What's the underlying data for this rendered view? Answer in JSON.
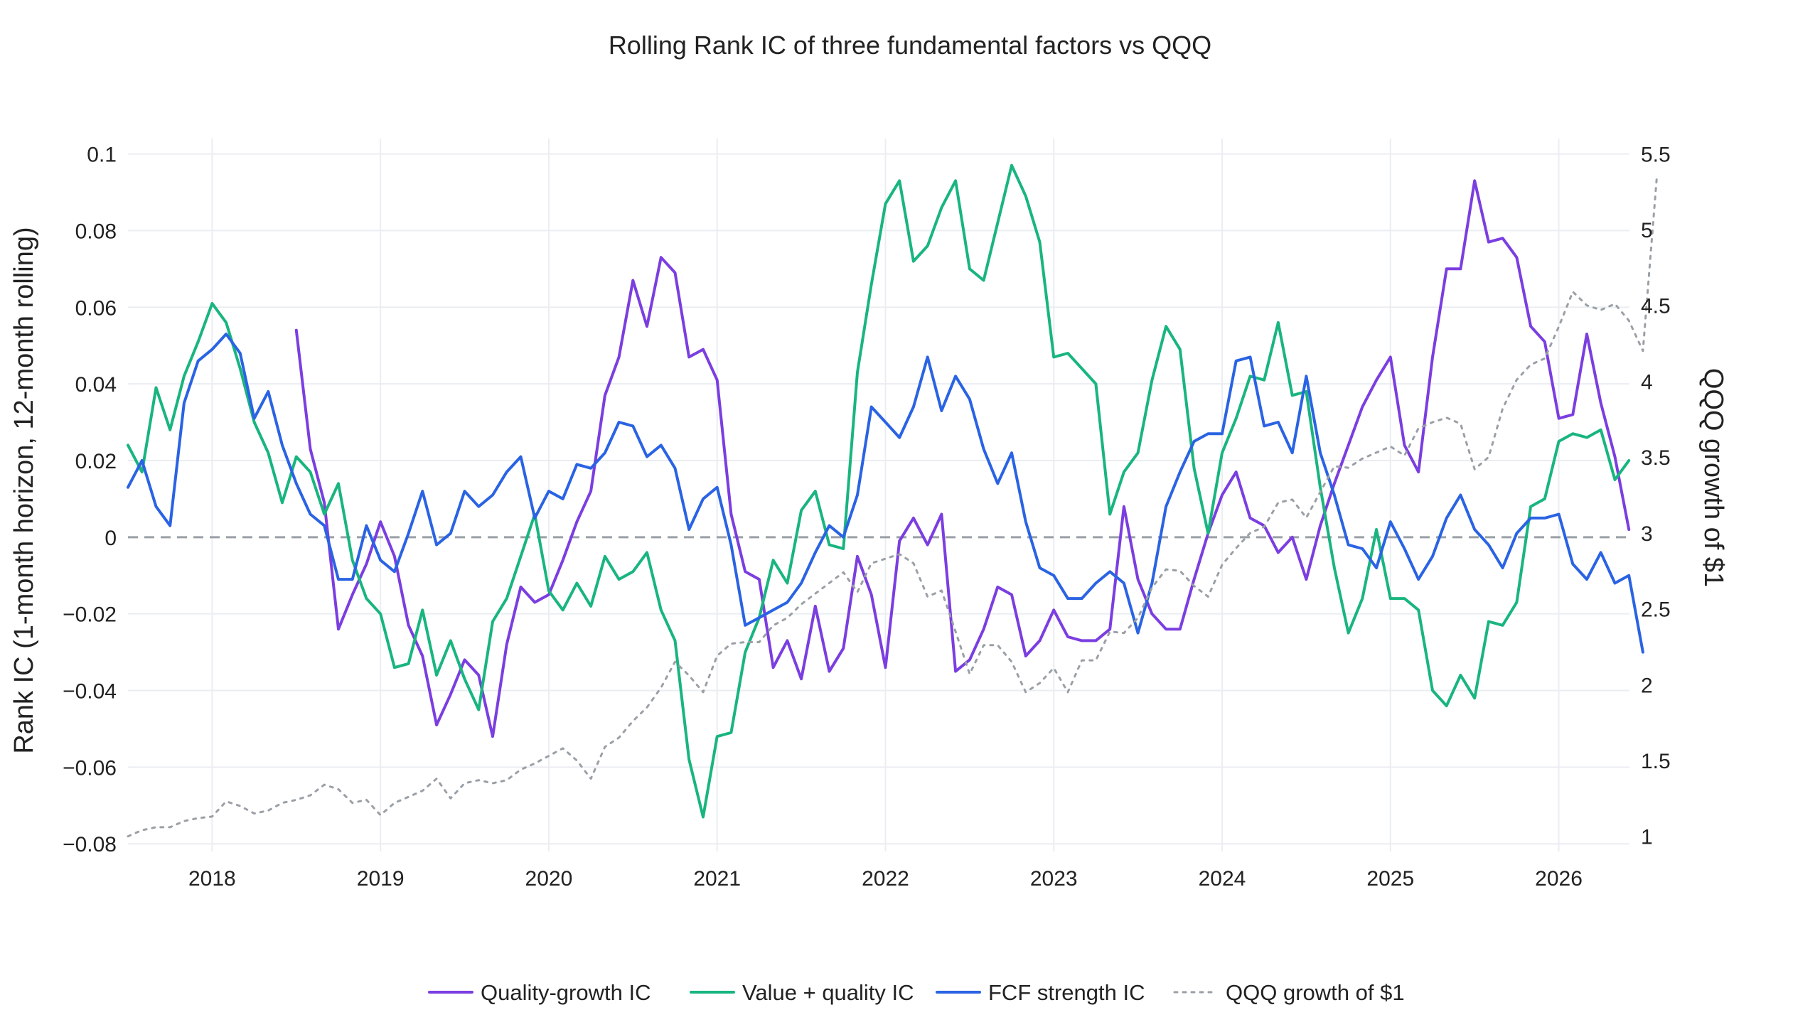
{
  "chart_data": {
    "type": "line",
    "title": "Rolling Rank IC of three fundamental factors vs QQQ",
    "xlabel": "",
    "ylabel": "Rank IC (1-month horizon, 12-month rolling)",
    "y2label": "QQQ growth of $1",
    "ylim": [
      -0.082,
      0.104
    ],
    "y2lim": [
      0.9,
      5.6
    ],
    "xlim": [
      2017.5,
      2026.42
    ],
    "x_ticks": [
      "2018",
      "2019",
      "2020",
      "2021",
      "2022",
      "2023",
      "2024",
      "2025",
      "2026"
    ],
    "x_tick_values": [
      2018,
      2019,
      2020,
      2021,
      2022,
      2023,
      2024,
      2025,
      2026
    ],
    "y_ticks": [
      "0.1",
      "0.08",
      "0.06",
      "0.04",
      "0.02",
      "0",
      "−0.02",
      "−0.04",
      "−0.06",
      "−0.08"
    ],
    "y_tick_values": [
      0.1,
      0.08,
      0.06,
      0.04,
      0.02,
      0,
      -0.02,
      -0.04,
      -0.06,
      -0.08
    ],
    "y2_ticks": [
      "5.5",
      "5",
      "4.5",
      "4",
      "3.5",
      "3",
      "2.5",
      "2",
      "1.5",
      "1"
    ],
    "y2_tick_values": [
      5.5,
      5,
      4.5,
      4,
      3.5,
      3,
      2.5,
      2,
      1.5,
      1
    ],
    "zero_line": true,
    "grid": true,
    "legend_position": "bottom-center",
    "series": [
      {
        "name": "Quality-growth IC",
        "color": "#7b3ee0",
        "axis": "left",
        "dash": "solid",
        "x_start": 2018.5,
        "values": [
          0.054,
          0.023,
          0.009,
          -0.024,
          -0.015,
          -0.007,
          0.004,
          -0.005,
          -0.023,
          -0.031,
          -0.049,
          -0.041,
          -0.032,
          -0.036,
          -0.052,
          -0.028,
          -0.013,
          -0.017,
          -0.015,
          -0.006,
          0.004,
          0.012,
          0.037,
          0.047,
          0.067,
          0.055,
          0.073,
          0.069,
          0.047,
          0.049,
          0.041,
          0.006,
          -0.009,
          -0.011,
          -0.034,
          -0.027,
          -0.037,
          -0.018,
          -0.035,
          -0.029,
          -0.005,
          -0.015,
          -0.034,
          -0.001,
          0.005,
          -0.002,
          0.006,
          -0.035,
          -0.032,
          -0.024,
          -0.013,
          -0.015,
          -0.031,
          -0.027,
          -0.019,
          -0.026,
          -0.027,
          -0.027,
          -0.024,
          0.008,
          -0.011,
          -0.02,
          -0.024,
          -0.024,
          -0.011,
          0.001,
          0.011,
          0.017,
          0.005,
          0.003,
          -0.004,
          0.0,
          -0.011,
          0.003,
          0.014,
          0.024,
          0.034,
          0.041,
          0.047,
          0.024,
          0.017,
          0.047,
          0.07,
          0.07,
          0.093,
          0.077,
          0.078,
          0.073,
          0.055,
          0.051,
          0.031,
          0.032,
          0.053,
          0.035,
          0.021,
          0.002
        ]
      },
      {
        "name": "Value + quality IC",
        "color": "#19b57f",
        "axis": "left",
        "dash": "solid",
        "x_start": 2017.5,
        "values": [
          0.024,
          0.017,
          0.039,
          0.028,
          0.042,
          0.051,
          0.061,
          0.056,
          0.044,
          0.03,
          0.022,
          0.009,
          0.021,
          0.017,
          0.006,
          0.014,
          -0.006,
          -0.016,
          -0.02,
          -0.034,
          -0.033,
          -0.019,
          -0.036,
          -0.027,
          -0.037,
          -0.045,
          -0.022,
          -0.016,
          -0.005,
          0.006,
          -0.014,
          -0.019,
          -0.012,
          -0.018,
          -0.005,
          -0.011,
          -0.009,
          -0.004,
          -0.019,
          -0.027,
          -0.058,
          -0.073,
          -0.052,
          -0.051,
          -0.03,
          -0.021,
          -0.006,
          -0.012,
          0.007,
          0.012,
          -0.002,
          -0.003,
          0.043,
          0.066,
          0.087,
          0.093,
          0.072,
          0.076,
          0.086,
          0.093,
          0.07,
          0.067,
          0.082,
          0.097,
          0.089,
          0.077,
          0.047,
          0.048,
          0.044,
          0.04,
          0.006,
          0.017,
          0.022,
          0.041,
          0.055,
          0.049,
          0.018,
          0.001,
          0.022,
          0.031,
          0.042,
          0.041,
          0.056,
          0.037,
          0.038,
          0.013,
          -0.008,
          -0.025,
          -0.016,
          0.002,
          -0.016,
          -0.016,
          -0.019,
          -0.04,
          -0.044,
          -0.036,
          -0.042,
          -0.022,
          -0.023,
          -0.017,
          0.008,
          0.01,
          0.025,
          0.027,
          0.026,
          0.028,
          0.015,
          0.02
        ]
      },
      {
        "name": "FCF strength IC",
        "color": "#2a63e3",
        "axis": "left",
        "dash": "solid",
        "x_start": 2017.5,
        "values": [
          0.013,
          0.02,
          0.008,
          0.003,
          0.035,
          0.046,
          0.049,
          0.053,
          0.048,
          0.031,
          0.038,
          0.024,
          0.014,
          0.006,
          0.003,
          -0.011,
          -0.011,
          0.003,
          -0.006,
          -0.009,
          0.001,
          0.012,
          -0.002,
          0.001,
          0.012,
          0.008,
          0.011,
          0.017,
          0.021,
          0.005,
          0.012,
          0.01,
          0.019,
          0.018,
          0.022,
          0.03,
          0.029,
          0.021,
          0.024,
          0.018,
          0.002,
          0.01,
          0.013,
          -0.002,
          -0.023,
          -0.021,
          -0.019,
          -0.017,
          -0.012,
          -0.004,
          0.003,
          0.0,
          0.011,
          0.034,
          0.03,
          0.026,
          0.034,
          0.047,
          0.033,
          0.042,
          0.036,
          0.023,
          0.014,
          0.022,
          0.004,
          -0.008,
          -0.01,
          -0.016,
          -0.016,
          -0.012,
          -0.009,
          -0.012,
          -0.025,
          -0.012,
          0.008,
          0.017,
          0.025,
          0.027,
          0.027,
          0.046,
          0.047,
          0.029,
          0.03,
          0.022,
          0.042,
          0.022,
          0.011,
          -0.002,
          -0.003,
          -0.008,
          0.004,
          -0.003,
          -0.011,
          -0.005,
          0.005,
          0.011,
          0.002,
          -0.002,
          -0.008,
          0.001,
          0.005,
          0.005,
          0.006,
          -0.007,
          -0.011,
          -0.004,
          -0.012,
          -0.01,
          -0.03
        ]
      },
      {
        "name": "QQQ growth of $1",
        "color": "#9aa0a6",
        "axis": "right",
        "dash": "dot",
        "x_start": 2017.5,
        "values": [
          1.0,
          1.04,
          1.06,
          1.06,
          1.1,
          1.12,
          1.13,
          1.23,
          1.2,
          1.15,
          1.17,
          1.22,
          1.24,
          1.27,
          1.34,
          1.31,
          1.22,
          1.24,
          1.14,
          1.22,
          1.26,
          1.3,
          1.38,
          1.25,
          1.35,
          1.37,
          1.35,
          1.37,
          1.44,
          1.48,
          1.53,
          1.58,
          1.5,
          1.38,
          1.59,
          1.65,
          1.76,
          1.85,
          1.98,
          2.15,
          2.06,
          1.95,
          2.19,
          2.27,
          2.28,
          2.28,
          2.39,
          2.44,
          2.53,
          2.6,
          2.67,
          2.74,
          2.61,
          2.8,
          2.83,
          2.86,
          2.8,
          2.58,
          2.62,
          2.35,
          2.07,
          2.26,
          2.26,
          2.15,
          1.95,
          2.01,
          2.11,
          1.95,
          2.16,
          2.16,
          2.35,
          2.34,
          2.44,
          2.64,
          2.76,
          2.75,
          2.65,
          2.58,
          2.79,
          2.9,
          3.0,
          3.04,
          3.2,
          3.22,
          3.1,
          3.27,
          3.44,
          3.43,
          3.49,
          3.53,
          3.57,
          3.51,
          3.69,
          3.73,
          3.76,
          3.72,
          3.42,
          3.5,
          3.82,
          4.01,
          4.11,
          4.15,
          4.36,
          4.59,
          4.5,
          4.47,
          4.51,
          4.4,
          4.2,
          5.36
        ]
      }
    ]
  }
}
